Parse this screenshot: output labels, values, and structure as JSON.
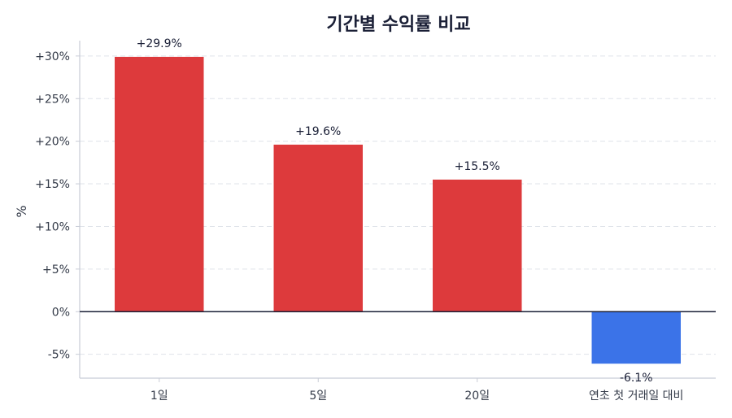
{
  "chart_data": {
    "type": "bar",
    "title": "기간별 수익률 비교",
    "ylabel": "%",
    "xlabel": "",
    "categories": [
      "1일",
      "5일",
      "20일",
      "연초 첫 거래일 대비"
    ],
    "values": [
      29.9,
      19.6,
      15.5,
      -6.1
    ],
    "data_labels": [
      "+29.9%",
      "+19.6%",
      "+15.5%",
      "-6.1%"
    ],
    "yticks": [
      -5,
      0,
      5,
      10,
      15,
      20,
      25,
      30
    ],
    "ytick_labels": [
      "-5%",
      "0%",
      "+5%",
      "+10%",
      "+15%",
      "+20%",
      "+25%",
      "+30%"
    ],
    "ylim": [
      -7.8,
      31.8
    ],
    "grid": true,
    "colors": {
      "positive": "#dd3a3c",
      "negative": "#3b73e8",
      "zero_line": "#1a1f36",
      "grid": "#dfe3ea",
      "axis": "#c8ccd6"
    }
  }
}
